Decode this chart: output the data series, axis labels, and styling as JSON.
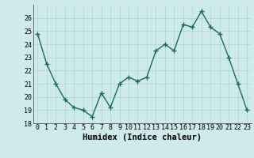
{
  "x": [
    0,
    1,
    2,
    3,
    4,
    5,
    6,
    7,
    8,
    9,
    10,
    11,
    12,
    13,
    14,
    15,
    16,
    17,
    18,
    19,
    20,
    21,
    22,
    23
  ],
  "y": [
    24.8,
    22.5,
    21.0,
    19.8,
    19.2,
    19.0,
    18.5,
    20.3,
    19.2,
    21.0,
    21.5,
    21.2,
    21.5,
    23.5,
    24.0,
    23.5,
    25.5,
    25.3,
    26.5,
    25.3,
    24.8,
    23.0,
    21.0,
    19.0
  ],
  "line_color": "#1a6b5a",
  "marker": "+",
  "marker_size": 4,
  "xlabel": "Humidex (Indice chaleur)",
  "xlabel_fontsize": 7.5,
  "ylim": [
    18,
    27
  ],
  "xlim": [
    -0.5,
    23.5
  ],
  "yticks": [
    18,
    19,
    20,
    21,
    22,
    23,
    24,
    25,
    26
  ],
  "xticks": [
    0,
    1,
    2,
    3,
    4,
    5,
    6,
    7,
    8,
    9,
    10,
    11,
    12,
    13,
    14,
    15,
    16,
    17,
    18,
    19,
    20,
    21,
    22,
    23
  ],
  "xtick_labels": [
    "0",
    "1",
    "2",
    "3",
    "4",
    "5",
    "6",
    "7",
    "8",
    "9",
    "10",
    "11",
    "12",
    "13",
    "14",
    "15",
    "16",
    "17",
    "18",
    "19",
    "20",
    "21",
    "22",
    "23"
  ],
  "background_color": "#ceeaea",
  "grid_color": "#aed4d4",
  "tick_fontsize": 6,
  "line_width": 1.0,
  "marker_edge_width": 1.0
}
